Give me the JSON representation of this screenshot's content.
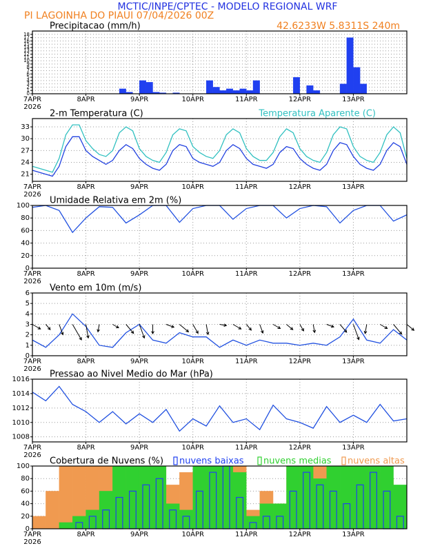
{
  "header": {
    "title": "MCTIC/INPE/CPTEC - MODELO REGIONAL WRF",
    "location": "PI LAGOINHA DO PIAUI  07/04/2026 00Z",
    "coords": "42.6233W 5.8311S 240m"
  },
  "chart_data": [
    {
      "type": "bar",
      "title": "Precipitacao (mm/h)",
      "color": "#2040f0",
      "x": [
        0,
        3,
        6,
        9,
        12,
        15,
        18,
        21,
        24,
        27,
        30,
        33,
        36,
        39,
        42,
        45,
        48,
        51,
        54,
        57,
        60,
        63,
        66,
        69,
        72,
        75,
        78,
        81,
        84,
        87,
        90,
        93,
        96,
        99,
        102,
        105,
        108,
        111,
        114,
        117,
        120,
        123,
        126,
        129,
        132,
        135,
        138,
        141,
        144,
        147,
        150,
        153,
        156,
        159,
        162,
        165
      ],
      "values": [
        0,
        0,
        0,
        0,
        0,
        0,
        0,
        0,
        0,
        0,
        0,
        0,
        0,
        1.5,
        0.5,
        0,
        4,
        3.5,
        0.5,
        0.3,
        0,
        0.3,
        0,
        0,
        0,
        0,
        4,
        2,
        1,
        1.5,
        1,
        1.5,
        1,
        4,
        0,
        0,
        0,
        0,
        0,
        5,
        0,
        2.5,
        1,
        0,
        0,
        0,
        3,
        17,
        8,
        3,
        0,
        0,
        0,
        0,
        0,
        0
      ],
      "xlim": [
        0,
        168
      ],
      "ylim": [
        0,
        19
      ],
      "yticks": [
        0,
        1,
        2,
        3,
        4,
        5,
        6,
        7,
        8,
        9,
        10,
        11,
        12,
        13,
        14,
        15,
        16,
        17,
        18
      ],
      "xticks": [
        {
          "value": 0,
          "label": "7APR"
        },
        {
          "value": 24,
          "label": "8APR"
        },
        {
          "value": 48,
          "label": "9APR"
        },
        {
          "value": 72,
          "label": "10APR"
        },
        {
          "value": 96,
          "label": "11APR"
        },
        {
          "value": 120,
          "label": "12APR"
        },
        {
          "value": 144,
          "label": "13APR"
        }
      ],
      "year": "2026",
      "grid": true
    },
    {
      "type": "line",
      "title": "2-m Temperatura (C)",
      "x": [
        0,
        3,
        6,
        9,
        12,
        15,
        18,
        21,
        24,
        27,
        30,
        33,
        36,
        39,
        42,
        45,
        48,
        51,
        54,
        57,
        60,
        63,
        66,
        69,
        72,
        75,
        78,
        81,
        84,
        87,
        90,
        93,
        96,
        99,
        102,
        105,
        108,
        111,
        114,
        117,
        120,
        123,
        126,
        129,
        132,
        135,
        138,
        141,
        144,
        147,
        150,
        153,
        156,
        159,
        162,
        165,
        168
      ],
      "series": [
        {
          "color": "#2040e0",
          "values": [
            22,
            21.5,
            21,
            20.5,
            23,
            28,
            30.5,
            30.5,
            27,
            25.5,
            24.5,
            23.5,
            24.5,
            27,
            28.5,
            27.5,
            25,
            23.5,
            22.5,
            22,
            23.5,
            27,
            28.5,
            28,
            25,
            24,
            23.5,
            23,
            24,
            27,
            28.5,
            27.5,
            25,
            23.5,
            23,
            22.5,
            23.5,
            26.5,
            28,
            27.5,
            25,
            23.5,
            22.5,
            22,
            23.5,
            27,
            29,
            28.5,
            25.5,
            23.5,
            22.5,
            22,
            23.5,
            27,
            29,
            28,
            23.5
          ]
        },
        {
          "name": "Temperatura Aparente (C)",
          "color": "#30c0c0",
          "values": [
            23,
            22.5,
            22,
            21.5,
            25,
            31,
            33.5,
            33.5,
            29.5,
            27.5,
            26,
            25.5,
            27,
            31.5,
            33,
            32,
            27.5,
            25.5,
            24.5,
            24,
            26.5,
            31,
            32.5,
            32,
            28,
            26.5,
            25.5,
            25,
            27,
            31,
            32.5,
            31.5,
            27.5,
            25.5,
            24.5,
            24.5,
            26.5,
            30.5,
            32.5,
            31.5,
            27.5,
            25.5,
            24.5,
            24,
            26.5,
            31,
            33,
            32.5,
            28,
            25.5,
            24.5,
            24,
            26.5,
            31,
            33,
            31.5,
            25
          ]
        }
      ],
      "xlim": [
        0,
        168
      ],
      "ylim": [
        19.2,
        35.1
      ],
      "yticks": [
        21,
        24,
        27,
        30,
        33
      ],
      "xticks": [
        {
          "value": 0,
          "label": "7APR"
        },
        {
          "value": 24,
          "label": "8APR"
        },
        {
          "value": 48,
          "label": "9APR"
        },
        {
          "value": 72,
          "label": "10APR"
        },
        {
          "value": 96,
          "label": "11APR"
        },
        {
          "value": 120,
          "label": "12APR"
        },
        {
          "value": 144,
          "label": "13APR"
        }
      ],
      "year": "2026",
      "grid": true
    },
    {
      "type": "line",
      "title": "Umidade Relativa em 2m (%)",
      "color": "#2050e0",
      "x": [
        0,
        6,
        12,
        18,
        24,
        30,
        36,
        42,
        48,
        54,
        60,
        66,
        72,
        78,
        84,
        90,
        96,
        102,
        108,
        114,
        120,
        126,
        132,
        138,
        144,
        150,
        156,
        162,
        168
      ],
      "values": [
        97,
        100,
        92,
        57,
        80,
        98,
        97,
        72,
        85,
        100,
        100,
        73,
        95,
        100,
        100,
        78,
        95,
        100,
        100,
        80,
        95,
        100,
        98,
        72,
        92,
        100,
        100,
        75,
        85
      ],
      "xlim": [
        0,
        168
      ],
      "ylim": [
        0,
        100
      ],
      "yticks": [
        0,
        20,
        40,
        60,
        80,
        100
      ],
      "xticks": [
        {
          "value": 0,
          "label": "7APR"
        },
        {
          "value": 24,
          "label": "8APR"
        },
        {
          "value": 48,
          "label": "9APR"
        },
        {
          "value": 72,
          "label": "10APR"
        },
        {
          "value": 96,
          "label": "11APR"
        },
        {
          "value": 120,
          "label": "12APR"
        },
        {
          "value": 144,
          "label": "13APR"
        }
      ],
      "year": "2026",
      "grid": true
    },
    {
      "type": "line",
      "title": "Vento em 10m (m/s)",
      "color": "#2050e0",
      "x": [
        0,
        6,
        12,
        18,
        24,
        30,
        36,
        42,
        48,
        54,
        60,
        66,
        72,
        78,
        84,
        90,
        96,
        102,
        108,
        114,
        120,
        126,
        132,
        138,
        144,
        150,
        156,
        162,
        168
      ],
      "values": [
        1.5,
        0.8,
        2,
        4,
        2.8,
        1,
        0.8,
        2.2,
        3,
        1.5,
        1.2,
        2.2,
        1.8,
        1.8,
        0.8,
        1.5,
        1,
        1.5,
        1.2,
        1.2,
        1,
        1.2,
        1,
        1.8,
        3.5,
        1.5,
        1.2,
        2.5,
        1.5
      ],
      "directions": [
        300,
        320,
        340,
        330,
        350,
        10,
        300,
        320,
        340,
        0,
        290,
        310,
        330,
        350,
        280,
        300,
        320,
        340,
        300,
        310,
        330,
        350,
        290,
        320,
        340,
        10,
        300,
        320,
        310
      ],
      "xlim": [
        0,
        168
      ],
      "ylim": [
        0,
        6
      ],
      "yticks": [
        0,
        1,
        2,
        3,
        4,
        5,
        6
      ],
      "xticks": [
        {
          "value": 0,
          "label": "7APR"
        },
        {
          "value": 24,
          "label": "8APR"
        },
        {
          "value": 48,
          "label": "9APR"
        },
        {
          "value": 72,
          "label": "10APR"
        },
        {
          "value": 96,
          "label": "11APR"
        },
        {
          "value": 120,
          "label": "12APR"
        },
        {
          "value": 144,
          "label": "13APR"
        }
      ],
      "year": "2026",
      "grid": true
    },
    {
      "type": "line",
      "title": "Pressao ao Nivel Medio do Mar (hPa)",
      "color": "#2050e0",
      "x": [
        0,
        6,
        12,
        18,
        24,
        30,
        36,
        42,
        48,
        54,
        60,
        66,
        72,
        78,
        84,
        90,
        96,
        102,
        108,
        114,
        120,
        126,
        132,
        138,
        144,
        150,
        156,
        162,
        168
      ],
      "values": [
        1014.2,
        1013,
        1015,
        1012.5,
        1011.5,
        1010,
        1011.5,
        1009.8,
        1011.2,
        1010,
        1011.8,
        1008.8,
        1010.5,
        1009.5,
        1012.3,
        1010,
        1010.5,
        1009,
        1012.4,
        1010.5,
        1010,
        1009.2,
        1012.2,
        1010,
        1011,
        1010,
        1012.5,
        1010.2,
        1010.5
      ],
      "xlim": [
        0,
        168
      ],
      "ylim": [
        1007.3,
        1016
      ],
      "yticks": [
        1008,
        1010,
        1012,
        1014,
        1016
      ],
      "xticks": [
        {
          "value": 0,
          "label": "7APR"
        },
        {
          "value": 24,
          "label": "8APR"
        },
        {
          "value": 48,
          "label": "9APR"
        },
        {
          "value": 72,
          "label": "10APR"
        },
        {
          "value": 96,
          "label": "11APR"
        },
        {
          "value": 120,
          "label": "12APR"
        },
        {
          "value": 144,
          "label": "13APR"
        }
      ],
      "year": "2026",
      "grid": true
    },
    {
      "type": "bar",
      "title": "Cobertura de Nuvens (%)",
      "x": [
        0,
        6,
        12,
        18,
        24,
        30,
        36,
        42,
        48,
        54,
        60,
        66,
        72,
        78,
        84,
        90,
        96,
        102,
        108,
        114,
        120,
        126,
        132,
        138,
        144,
        150,
        156,
        162
      ],
      "series": [
        {
          "name": "nuvens altas",
          "color": "#f09a50",
          "values": [
            20,
            60,
            100,
            100,
            100,
            100,
            100,
            80,
            100,
            100,
            70,
            90,
            100,
            100,
            100,
            100,
            30,
            60,
            40,
            100,
            100,
            100,
            100,
            60,
            100,
            90,
            80,
            40
          ]
        },
        {
          "name": "nuvens medias",
          "color": "#30d030",
          "values": [
            0,
            0,
            10,
            20,
            30,
            60,
            100,
            100,
            100,
            100,
            40,
            30,
            100,
            100,
            100,
            90,
            20,
            40,
            40,
            100,
            100,
            80,
            100,
            100,
            100,
            100,
            100,
            70
          ]
        },
        {
          "name": "nuvens baixas",
          "color": "#2040f0",
          "values": [
            0,
            0,
            0,
            10,
            20,
            30,
            50,
            60,
            70,
            80,
            30,
            20,
            60,
            90,
            100,
            50,
            10,
            20,
            20,
            60,
            90,
            70,
            60,
            40,
            70,
            90,
            60,
            20
          ]
        }
      ],
      "xlim": [
        0,
        168
      ],
      "ylim": [
        0,
        100
      ],
      "yticks": [
        0,
        20,
        40,
        60,
        80,
        100
      ],
      "xticks": [
        {
          "value": 0,
          "label": "7APR"
        },
        {
          "value": 24,
          "label": "8APR"
        },
        {
          "value": 48,
          "label": "9APR"
        },
        {
          "value": 72,
          "label": "10APR"
        },
        {
          "value": 96,
          "label": "11APR"
        },
        {
          "value": 120,
          "label": "12APR"
        },
        {
          "value": 144,
          "label": "13APR"
        }
      ],
      "year": "2026",
      "grid": true
    }
  ]
}
